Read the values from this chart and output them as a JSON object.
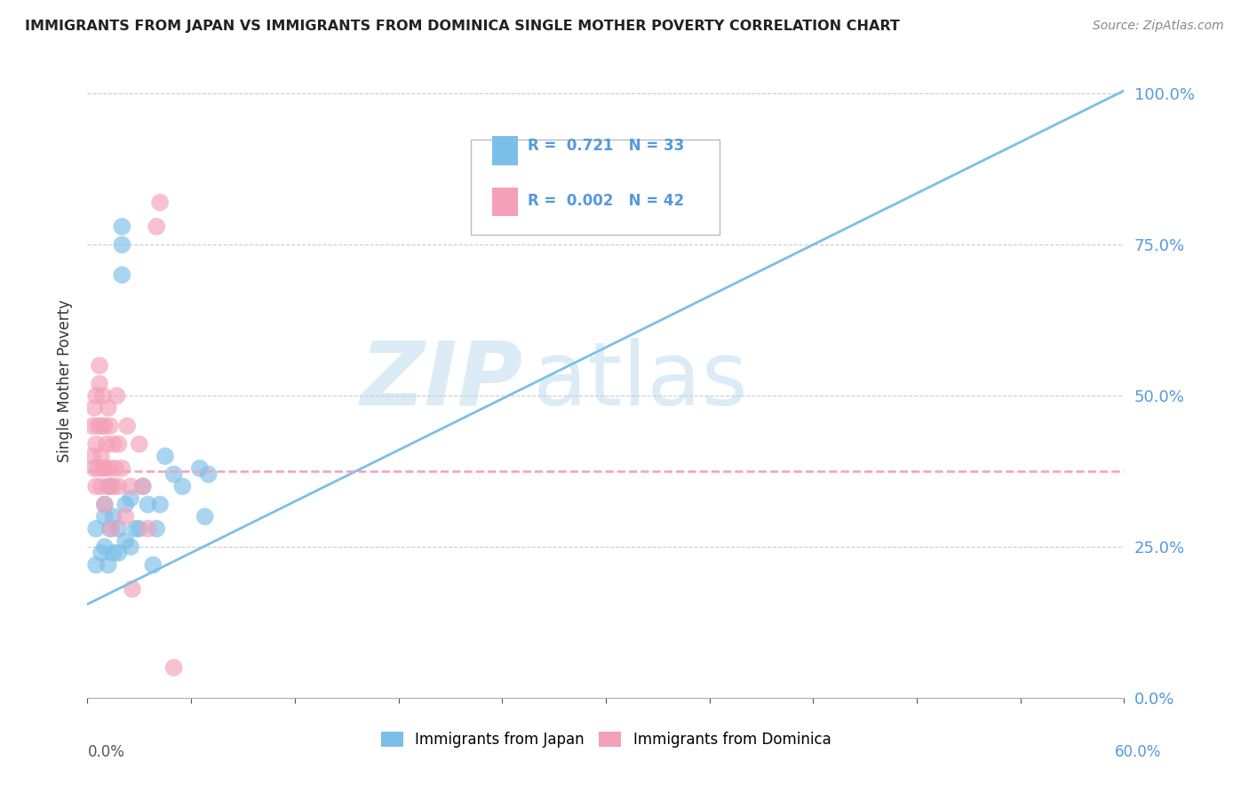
{
  "title": "IMMIGRANTS FROM JAPAN VS IMMIGRANTS FROM DOMINICA SINGLE MOTHER POVERTY CORRELATION CHART",
  "source": "Source: ZipAtlas.com",
  "ylabel": "Single Mother Poverty",
  "xlim": [
    0.0,
    0.6
  ],
  "ylim": [
    0.0,
    1.05
  ],
  "japan_color": "#7bbfe8",
  "dominica_color": "#f4a0b8",
  "background_color": "#ffffff",
  "grid_color": "#cccccc",
  "right_tick_color": "#5599dd",
  "japan_line_y0": 0.155,
  "japan_line_y1": 1.005,
  "dominica_line_y": 0.375,
  "japan_scatter_x": [
    0.005,
    0.005,
    0.008,
    0.01,
    0.01,
    0.01,
    0.012,
    0.013,
    0.013,
    0.015,
    0.015,
    0.018,
    0.018,
    0.02,
    0.02,
    0.02,
    0.022,
    0.022,
    0.025,
    0.025,
    0.028,
    0.03,
    0.032,
    0.035,
    0.038,
    0.04,
    0.042,
    0.045,
    0.05,
    0.055,
    0.065,
    0.068,
    0.07
  ],
  "japan_scatter_y": [
    0.22,
    0.28,
    0.24,
    0.25,
    0.3,
    0.32,
    0.22,
    0.28,
    0.35,
    0.24,
    0.3,
    0.24,
    0.28,
    0.7,
    0.75,
    0.78,
    0.26,
    0.32,
    0.25,
    0.33,
    0.28,
    0.28,
    0.35,
    0.32,
    0.22,
    0.28,
    0.32,
    0.4,
    0.37,
    0.35,
    0.38,
    0.3,
    0.37
  ],
  "dominica_scatter_x": [
    0.003,
    0.003,
    0.004,
    0.004,
    0.005,
    0.005,
    0.005,
    0.006,
    0.006,
    0.007,
    0.007,
    0.008,
    0.008,
    0.008,
    0.009,
    0.009,
    0.01,
    0.01,
    0.01,
    0.011,
    0.012,
    0.012,
    0.013,
    0.013,
    0.014,
    0.015,
    0.015,
    0.016,
    0.017,
    0.018,
    0.018,
    0.02,
    0.022,
    0.023,
    0.025,
    0.026,
    0.03,
    0.032,
    0.035,
    0.04,
    0.042,
    0.05
  ],
  "dominica_scatter_y": [
    0.4,
    0.45,
    0.38,
    0.48,
    0.35,
    0.42,
    0.5,
    0.38,
    0.45,
    0.52,
    0.55,
    0.35,
    0.4,
    0.45,
    0.38,
    0.5,
    0.32,
    0.38,
    0.45,
    0.42,
    0.35,
    0.48,
    0.38,
    0.45,
    0.28,
    0.35,
    0.42,
    0.38,
    0.5,
    0.35,
    0.42,
    0.38,
    0.3,
    0.45,
    0.35,
    0.18,
    0.42,
    0.35,
    0.28,
    0.78,
    0.82,
    0.05
  ]
}
